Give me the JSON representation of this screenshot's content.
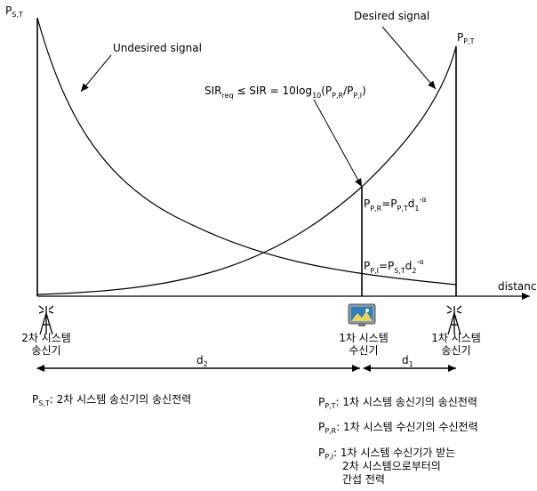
{
  "labels": {
    "p_st_axis": "P",
    "p_st_axis_sub": "S,T",
    "p_pt_axis": "P",
    "p_pt_axis_sub": "P,T",
    "desired": "Desired signal",
    "undesired": "Undesired signal",
    "distance": "distance",
    "sir_formula": {
      "a": "SIR",
      "a_sub": "req",
      "b": " ≤ SIR = 10log",
      "b_sub": "10",
      "c": "(P",
      "c_sub": "P,R",
      "d": "/P",
      "d_sub": "P,I",
      "e": ")"
    },
    "ppr_formula": {
      "a": "P",
      "a_sub": "P,R",
      "b": "=P",
      "b_sub": "P,T",
      "c": "d",
      "c_sub": "1",
      "c_sup": "-α"
    },
    "ppi_formula": {
      "a": "P",
      "a_sub": "P,I",
      "b": "=P",
      "b_sub": "S,T",
      "c": "d",
      "c_sub": "2",
      "c_sup": "-α"
    },
    "d2": "d",
    "d2_sub": "2",
    "d1": "d",
    "d1_sub": "1"
  },
  "devices": {
    "secondary_tx": {
      "line1": "2차 시스템",
      "line2": "송신기"
    },
    "primary_rx": {
      "line1": "1차 시스템",
      "line2": "수신기"
    },
    "primary_tx": {
      "line1": "1차 시스템",
      "line2": "송신기"
    }
  },
  "legend": {
    "pst": {
      "sym": "P",
      "sub": "S,T",
      "text": ": 2차 시스템 송신기의 송신전력"
    },
    "ppt": {
      "sym": "P",
      "sub": "P,T",
      "text": ": 1차 시스템 송신기의 송신전력"
    },
    "ppr": {
      "sym": "P",
      "sub": "P,R",
      "text": ": 1차 시스템 수신기의 수신전력"
    },
    "ppi": {
      "sym": "P",
      "sub": "P,I",
      "text": ": 1차 시스템 수신기가 받는",
      "line2": "2차 시스템으로부터의",
      "line3": "간섭 전력"
    }
  }
}
